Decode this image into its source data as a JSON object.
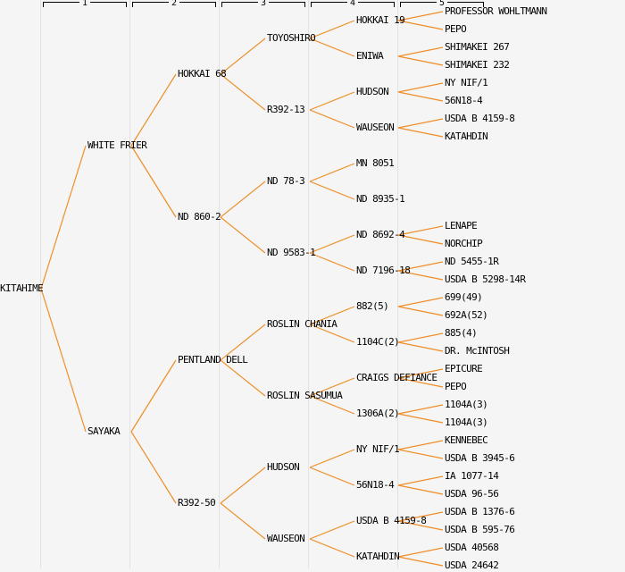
{
  "colors": {
    "line": "#EE8F28",
    "background": "#F5F5F5",
    "grid": "#E2E2E2",
    "text": "#000000"
  },
  "ruler": {
    "generations": [
      "1",
      "2",
      "3",
      "4",
      "5"
    ]
  },
  "tree": {
    "label": "KITAHIME",
    "children": [
      {
        "label": "WHITE FRIER",
        "children": [
          {
            "label": "HOKKAI 68",
            "children": [
              {
                "label": "TOYOSHIRO",
                "children": [
                  {
                    "label": "HOKKAI 19",
                    "children": [
                      {
                        "label": "PROFESSOR WOHLTMANN"
                      },
                      {
                        "label": "PEPO"
                      }
                    ]
                  },
                  {
                    "label": "ENIWA",
                    "children": [
                      {
                        "label": "SHIMAKEI 267"
                      },
                      {
                        "label": "SHIMAKEI 232"
                      }
                    ]
                  }
                ]
              },
              {
                "label": "R392-13",
                "children": [
                  {
                    "label": "HUDSON",
                    "children": [
                      {
                        "label": "NY NIF/1"
                      },
                      {
                        "label": "56N18-4"
                      }
                    ]
                  },
                  {
                    "label": "WAUSEON",
                    "children": [
                      {
                        "label": "USDA B 4159-8"
                      },
                      {
                        "label": "KATAHDIN"
                      }
                    ]
                  }
                ]
              }
            ]
          },
          {
            "label": "ND 860-2",
            "children": [
              {
                "label": "ND 78-3",
                "children": [
                  {
                    "label": "MN 8051"
                  },
                  {
                    "label": "ND 8935-1"
                  }
                ]
              },
              {
                "label": "ND 9583-1",
                "children": [
                  {
                    "label": "ND 8692-4",
                    "children": [
                      {
                        "label": "LENAPE"
                      },
                      {
                        "label": "NORCHIP"
                      }
                    ]
                  },
                  {
                    "label": "ND 7196-18",
                    "children": [
                      {
                        "label": "ND 5455-1R"
                      },
                      {
                        "label": "USDA B 5298-14R"
                      }
                    ]
                  }
                ]
              }
            ]
          }
        ]
      },
      {
        "label": "SAYAKA",
        "children": [
          {
            "label": "PENTLAND DELL",
            "children": [
              {
                "label": "ROSLIN CHANIA",
                "children": [
                  {
                    "label": "882(5)",
                    "children": [
                      {
                        "label": "699(49)"
                      },
                      {
                        "label": "692A(52)"
                      }
                    ]
                  },
                  {
                    "label": "1104C(2)",
                    "children": [
                      {
                        "label": "885(4)"
                      },
                      {
                        "label": "DR. McINTOSH"
                      }
                    ]
                  }
                ]
              },
              {
                "label": "ROSLIN SASUMUA",
                "children": [
                  {
                    "label": "CRAIGS DEFIANCE",
                    "children": [
                      {
                        "label": "EPICURE"
                      },
                      {
                        "label": "PEPO"
                      }
                    ]
                  },
                  {
                    "label": "1306A(2)",
                    "children": [
                      {
                        "label": "1104A(3)"
                      },
                      {
                        "label": "1104A(3)"
                      }
                    ]
                  }
                ]
              }
            ]
          },
          {
            "label": "R392-50",
            "children": [
              {
                "label": "HUDSON",
                "children": [
                  {
                    "label": "NY NIF/1",
                    "children": [
                      {
                        "label": "KENNEBEC"
                      },
                      {
                        "label": "USDA B 3945-6"
                      }
                    ]
                  },
                  {
                    "label": "56N18-4",
                    "children": [
                      {
                        "label": "IA 1077-14"
                      },
                      {
                        "label": "USDA 96-56"
                      }
                    ]
                  }
                ]
              },
              {
                "label": "WAUSEON",
                "children": [
                  {
                    "label": "USDA B 4159-8",
                    "children": [
                      {
                        "label": "USDA B 1376-6"
                      },
                      {
                        "label": "USDA B 595-76"
                      }
                    ]
                  },
                  {
                    "label": "KATAHDIN",
                    "children": [
                      {
                        "label": "USDA 40568"
                      },
                      {
                        "label": "USDA 24642"
                      }
                    ]
                  }
                ]
              }
            ]
          }
        ]
      }
    ]
  }
}
